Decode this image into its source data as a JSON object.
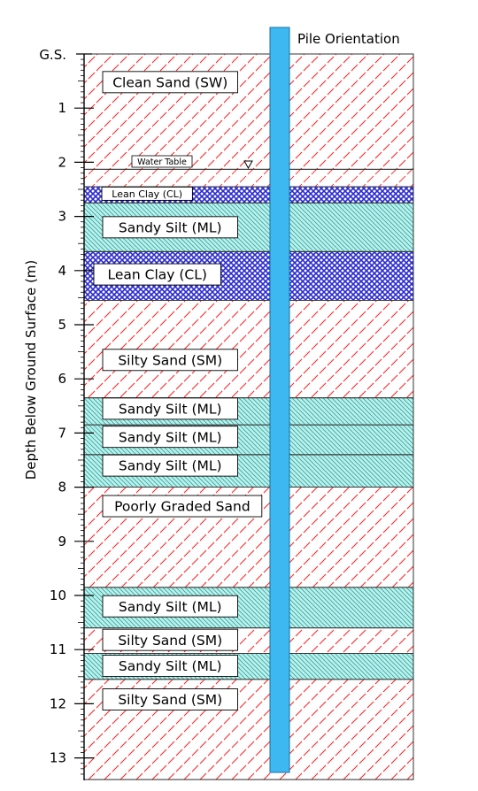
{
  "axis": {
    "label": "Depth Below Ground Surface (m)",
    "surface_label": "G.S.",
    "ticks": [
      "1",
      "2",
      "3",
      "4",
      "5",
      "6",
      "7",
      "8",
      "9",
      "10",
      "11",
      "12",
      "13"
    ],
    "max_depth": 13.4
  },
  "pile": {
    "label": "Pile Orientation",
    "color": "#3db8f0"
  },
  "water_table": {
    "label": "Water Table",
    "depth": 2.13
  },
  "colors": {
    "sand_hatch": "#ff3030",
    "clay_fill": "#2a2ad0",
    "silt_fill": "#bff0ec",
    "silt_hatch": "#2aa8a0"
  },
  "layers": [
    {
      "name": "Clean Sand (SW)",
      "type": "sand",
      "top": 0.0,
      "bottom": 2.13,
      "label_depth": 0.52
    },
    {
      "name": "Lean Clay (CL)",
      "type": "clay",
      "top": 2.45,
      "bottom": 2.75,
      "label_depth": 2.58,
      "small": true
    },
    {
      "name": "Sandy Silt (ML)",
      "type": "silt",
      "top": 2.75,
      "bottom": 3.65,
      "label_depth": 3.2
    },
    {
      "name": "Lean Clay (CL)",
      "type": "clay",
      "top": 3.65,
      "bottom": 4.55,
      "label_depth": 4.07
    },
    {
      "name": "Silty Sand (SM)",
      "type": "sand",
      "top": 4.55,
      "bottom": 6.35,
      "label_depth": 5.65
    },
    {
      "name": "Sandy Silt (ML)",
      "type": "silt",
      "top": 6.35,
      "bottom": 6.85,
      "label_depth": 6.55
    },
    {
      "name": "Sandy Silt (ML)",
      "type": "silt",
      "top": 6.85,
      "bottom": 7.4,
      "label_depth": 7.07
    },
    {
      "name": "Sandy Silt (ML)",
      "type": "silt",
      "top": 7.4,
      "bottom": 8.0,
      "label_depth": 7.6
    },
    {
      "name": "Poorly Graded Sand",
      "type": "sand",
      "top": 8.0,
      "bottom": 9.85,
      "label_depth": 8.35
    },
    {
      "name": "Sandy Silt (ML)",
      "type": "silt",
      "top": 9.85,
      "bottom": 10.6,
      "label_depth": 10.2
    },
    {
      "name": "Silty Sand (SM)",
      "type": "sand",
      "top": 10.6,
      "bottom": 11.07,
      "label_depth": 10.82
    },
    {
      "name": "Sandy Silt (ML)",
      "type": "silt",
      "top": 11.07,
      "bottom": 11.55,
      "label_depth": 11.3
    },
    {
      "name": "Silty Sand (SM)",
      "type": "sand",
      "top": 11.55,
      "bottom": 13.4,
      "label_depth": 11.92
    }
  ]
}
